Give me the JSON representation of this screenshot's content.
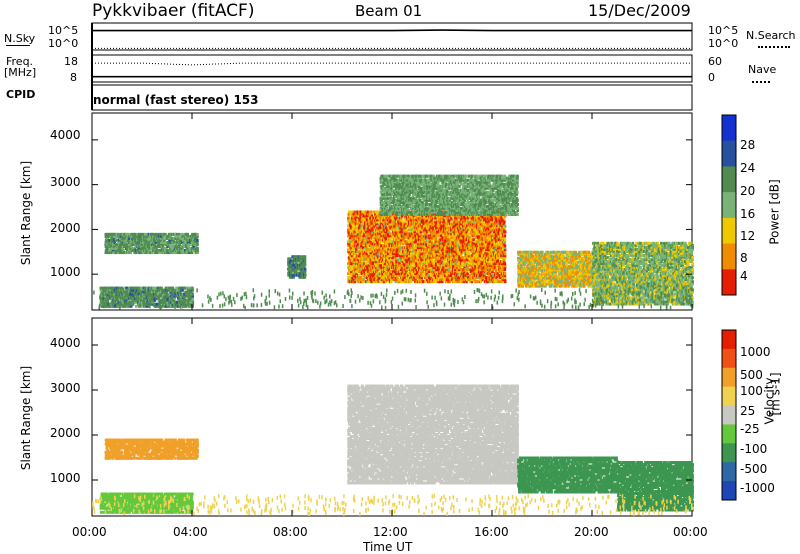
{
  "header": {
    "title": "Pykkvibaer (fitACF)",
    "beam": "Beam 01",
    "date": "15/Dec/2009"
  },
  "chart_data": [
    {
      "type": "line",
      "panel": "nsky",
      "left_label": "N.Sky",
      "right_label": "N.Search",
      "left_ticks": [
        "10^5",
        "10^0"
      ],
      "right_ticks": [
        "10^5",
        "10^0"
      ],
      "x": [
        "00:00",
        "02:00",
        "04:00",
        "06:00",
        "08:00",
        "10:00",
        "12:00",
        "14:00",
        "16:00",
        "18:00",
        "20:00",
        "22:00",
        "24:00"
      ],
      "series": [
        {
          "values": [
            3.6,
            3.6,
            3.6,
            3.6,
            3.6,
            3.6,
            3.6,
            3.7,
            3.6,
            3.6,
            3.6,
            3.6,
            3.6
          ]
        }
      ],
      "ylim": [
        0,
        5
      ]
    },
    {
      "type": "line",
      "panel": "freq",
      "left_label": "Freq.",
      "left_unit": "[MHz]",
      "right_label": "Nave",
      "left_ticks": [
        "18",
        "8"
      ],
      "right_ticks": [
        "60",
        "0"
      ],
      "x": [
        "00:00",
        "02:00",
        "04:00",
        "06:00",
        "08:00",
        "10:00",
        "12:00",
        "14:00",
        "16:00",
        "18:00",
        "20:00",
        "22:00",
        "24:00"
      ],
      "series": [
        {
          "values": [
            8.5,
            8.5,
            8.5,
            8.5,
            8.5,
            8.5,
            8.5,
            8.5,
            8.5,
            8.5,
            8.5,
            8.5,
            8.5
          ]
        },
        {
          "values": [
            42,
            42,
            38,
            42,
            42,
            42,
            42,
            42,
            42,
            42,
            42,
            42,
            42
          ]
        }
      ],
      "ylim": [
        8,
        18
      ]
    },
    {
      "type": "text",
      "panel": "cpid",
      "label": "CPID",
      "value": "normal (fast stereo) 153"
    },
    {
      "type": "heatmap",
      "panel": "power",
      "ylabel": "Slant Range [km]",
      "xlabel": "Time UT",
      "x_ticks": [
        "00:00",
        "04:00",
        "08:00",
        "12:00",
        "16:00",
        "20:00",
        "00:00"
      ],
      "y_ticks": [
        "1000",
        "2000",
        "3000",
        "4000"
      ],
      "ylim": [
        200,
        4600
      ],
      "colorbar_label": "Power [dB]",
      "colorbar_ticks": [
        "4",
        "8",
        "12",
        "16",
        "20",
        "24",
        "28"
      ],
      "colorbar_colors": [
        "#1432d2",
        "#2850a0",
        "#508c50",
        "#78b478",
        "#f0c800",
        "#f08c00",
        "#e61e00"
      ],
      "regions": [
        {
          "t0": 0.3,
          "t1": 4.0,
          "r0": 250,
          "r1": 700,
          "level": 10
        },
        {
          "t0": 0.5,
          "t1": 4.2,
          "r0": 1450,
          "r1": 1900,
          "level": 11
        },
        {
          "t0": 7.8,
          "t1": 8.5,
          "r0": 900,
          "r1": 1400,
          "level": 9
        },
        {
          "t0": 10.2,
          "t1": 16.5,
          "r0": 800,
          "r1": 2400,
          "level": 22
        },
        {
          "t0": 11.5,
          "t1": 17.0,
          "r0": 2300,
          "r1": 3200,
          "level": 12
        },
        {
          "t0": 17.0,
          "t1": 20.5,
          "r0": 700,
          "r1": 1500,
          "level": 18
        },
        {
          "t0": 20.0,
          "t1": 24.0,
          "r0": 300,
          "r1": 1700,
          "level": 14
        }
      ]
    },
    {
      "type": "heatmap",
      "panel": "velocity",
      "ylabel": "Slant Range [km]",
      "xlabel": "Time UT",
      "x_ticks": [
        "00:00",
        "04:00",
        "08:00",
        "12:00",
        "16:00",
        "20:00",
        "00:00"
      ],
      "y_ticks": [
        "1000",
        "2000",
        "3000",
        "4000"
      ],
      "ylim": [
        200,
        4600
      ],
      "colorbar_label": "Velocity",
      "colorbar_unit": "[m s-1]",
      "colorbar_ticks": [
        "1000",
        "500",
        "100",
        "25",
        "-25",
        "-100",
        "-500",
        "-1000"
      ],
      "colorbar_colors": [
        "#1e46b4",
        "#2d69a5",
        "#3c9650",
        "#64c83c",
        "#c8c8c3",
        "#f0d250",
        "#f0a028",
        "#f05014",
        "#e61e00"
      ],
      "regions": [
        {
          "t0": 0.3,
          "t1": 4.0,
          "r0": 250,
          "r1": 700,
          "level": 50
        },
        {
          "t0": 0.5,
          "t1": 4.2,
          "r0": 1450,
          "r1": 1900,
          "level": -200
        },
        {
          "t0": 10.2,
          "t1": 17.0,
          "r0": 900,
          "r1": 3100,
          "level": 0
        },
        {
          "t0": 17.0,
          "t1": 21.0,
          "r0": 700,
          "r1": 1500,
          "level": 150
        },
        {
          "t0": 21.0,
          "t1": 24.0,
          "r0": 300,
          "r1": 1400,
          "level": 300
        }
      ]
    }
  ],
  "time_label": "Time UT"
}
